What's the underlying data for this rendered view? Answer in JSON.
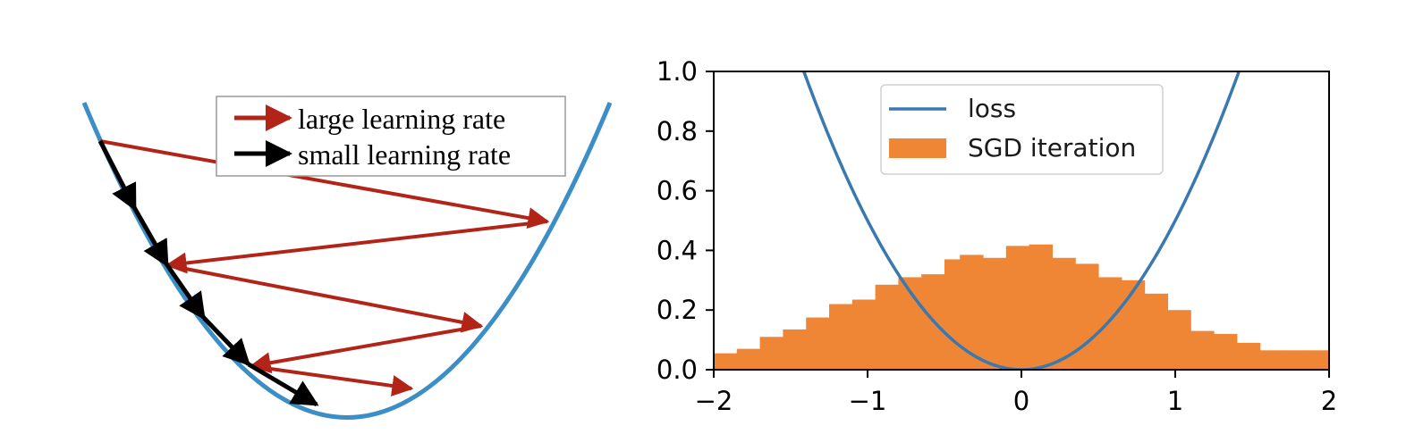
{
  "colors": {
    "curve": "#3b8fc6",
    "large_arrow": "#b22418",
    "small_arrow": "#000000",
    "loss": "#3a78b0",
    "hist": "#ef8636",
    "axis": "#000000"
  },
  "left_panel": {
    "legend": {
      "large_label": "large learning rate",
      "small_label": "small learning rate"
    }
  },
  "chart_data": {
    "type": "bar",
    "subtype": "histogram_with_line",
    "xlim": [
      -2,
      2
    ],
    "ylim": [
      0,
      1.0
    ],
    "x_ticks": [
      -2,
      -1,
      0,
      1,
      2
    ],
    "x_tick_labels": [
      "−2",
      "−1",
      "0",
      "1",
      "2"
    ],
    "y_ticks": [
      0.0,
      0.2,
      0.4,
      0.6,
      0.8,
      1.0
    ],
    "y_tick_labels": [
      "0.0",
      "0.2",
      "0.4",
      "0.6",
      "0.8",
      "1.0"
    ],
    "legend_position": "top-center",
    "legend": [
      "loss",
      "SGD iteration"
    ],
    "line_series": {
      "name": "loss",
      "function": "x^2 / 2",
      "color": "#3a78b0"
    },
    "hist_series": {
      "name": "SGD iteration",
      "color": "#ef8636",
      "bin_edges": [
        -2.0,
        -1.85,
        -1.7,
        -1.55,
        -1.4,
        -1.25,
        -1.1,
        -0.95,
        -0.8,
        -0.65,
        -0.5,
        -0.4,
        -0.25,
        -0.1,
        0.05,
        0.2,
        0.35,
        0.5,
        0.65,
        0.8,
        0.95,
        1.1,
        1.25,
        1.4,
        1.55,
        1.7,
        1.85,
        2.0
      ],
      "heights": [
        0.055,
        0.07,
        0.11,
        0.135,
        0.175,
        0.22,
        0.235,
        0.285,
        0.31,
        0.32,
        0.37,
        0.385,
        0.375,
        0.415,
        0.42,
        0.375,
        0.355,
        0.31,
        0.3,
        0.255,
        0.2,
        0.13,
        0.12,
        0.09,
        0.065,
        0.065,
        0.065
      ]
    }
  }
}
